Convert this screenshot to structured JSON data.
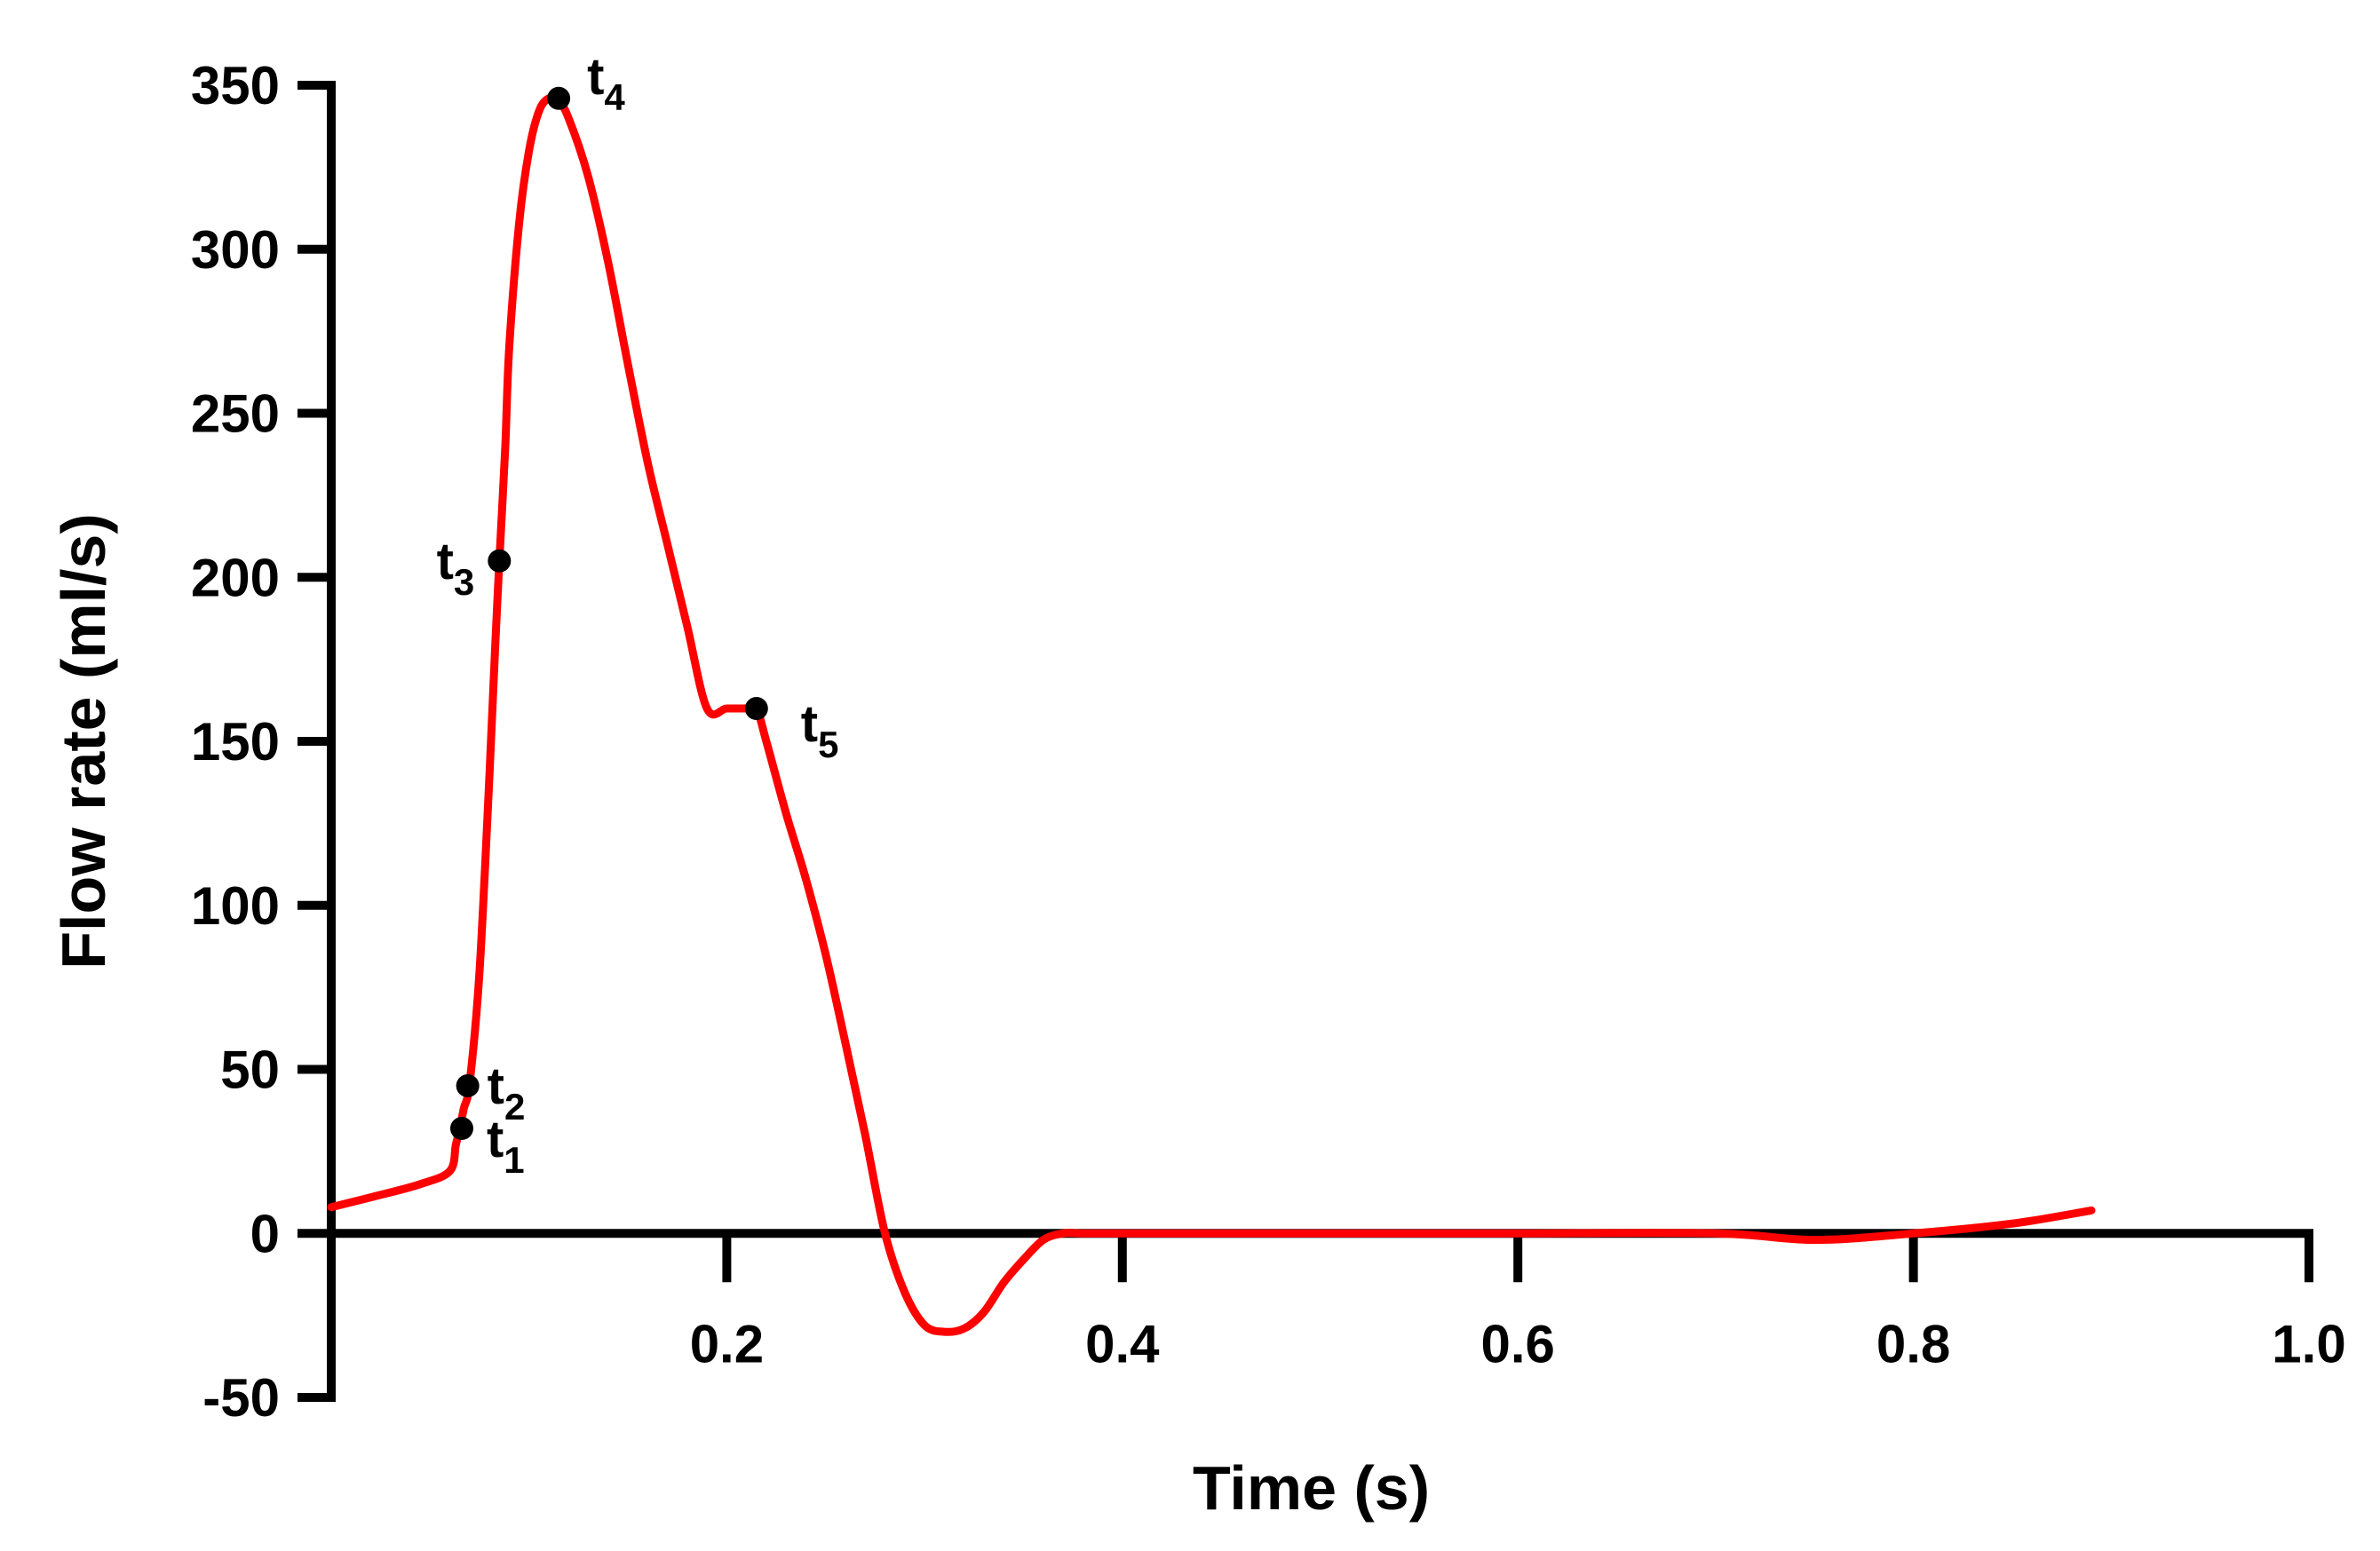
{
  "chart_data": {
    "type": "line",
    "title": "",
    "xlabel": "Time (s)",
    "ylabel": "Flow rate (ml/s)",
    "xlim": [
      0,
      1.0
    ],
    "ylim": [
      -50,
      350
    ],
    "x_ticks": [
      0.2,
      0.4,
      0.6,
      0.8,
      1.0
    ],
    "x_tick_labels": [
      "0.2",
      "0.4",
      "0.6",
      "0.8",
      "1.0"
    ],
    "y_ticks": [
      -50,
      0,
      50,
      100,
      150,
      200,
      250,
      300,
      350
    ],
    "y_tick_labels": [
      "-50",
      "0",
      "50",
      "100",
      "150",
      "200",
      "250",
      "300",
      "350"
    ],
    "grid": false,
    "line_color": "#ff0000",
    "marker_color": "#000000",
    "axis_color": "#000000",
    "series": [
      {
        "name": "Flow rate",
        "x": [
          0.0,
          0.02,
          0.045,
          0.06,
          0.063,
          0.065,
          0.067,
          0.07,
          0.075,
          0.08,
          0.083,
          0.085,
          0.088,
          0.09,
          0.095,
          0.1,
          0.105,
          0.11,
          0.115,
          0.12,
          0.13,
          0.14,
          0.15,
          0.16,
          0.17,
          0.18,
          0.19,
          0.2,
          0.21,
          0.215,
          0.22,
          0.23,
          0.24,
          0.25,
          0.26,
          0.27,
          0.28,
          0.29,
          0.3,
          0.31,
          0.32,
          0.33,
          0.34,
          0.35,
          0.36,
          0.37,
          0.38,
          0.39,
          0.4,
          0.5,
          0.6,
          0.7,
          0.75,
          0.8,
          0.85,
          0.89
        ],
        "y": [
          8,
          11,
          15,
          19,
          27,
          32,
          38,
          46,
          80,
          140,
          180,
          205,
          240,
          270,
          308,
          330,
          342,
          346,
          345,
          340,
          322,
          296,
          265,
          235,
          210,
          185,
          160,
          160,
          160,
          160,
          150,
          128,
          108,
          85,
          58,
          30,
          0,
          -18,
          -28,
          -30,
          -29,
          -24,
          -15,
          -8,
          -2,
          0,
          0,
          0,
          0,
          0,
          0,
          0,
          -2,
          0,
          3,
          7
        ]
      }
    ],
    "points": [
      {
        "label": "t",
        "sub": "1",
        "x": 0.066,
        "y": 32
      },
      {
        "label": "t",
        "sub": "2",
        "x": 0.069,
        "y": 45
      },
      {
        "label": "t",
        "sub": "3",
        "x": 0.085,
        "y": 205
      },
      {
        "label": "t",
        "sub": "4",
        "x": 0.115,
        "y": 346
      },
      {
        "label": "t",
        "sub": "5",
        "x": 0.215,
        "y": 160
      }
    ]
  }
}
